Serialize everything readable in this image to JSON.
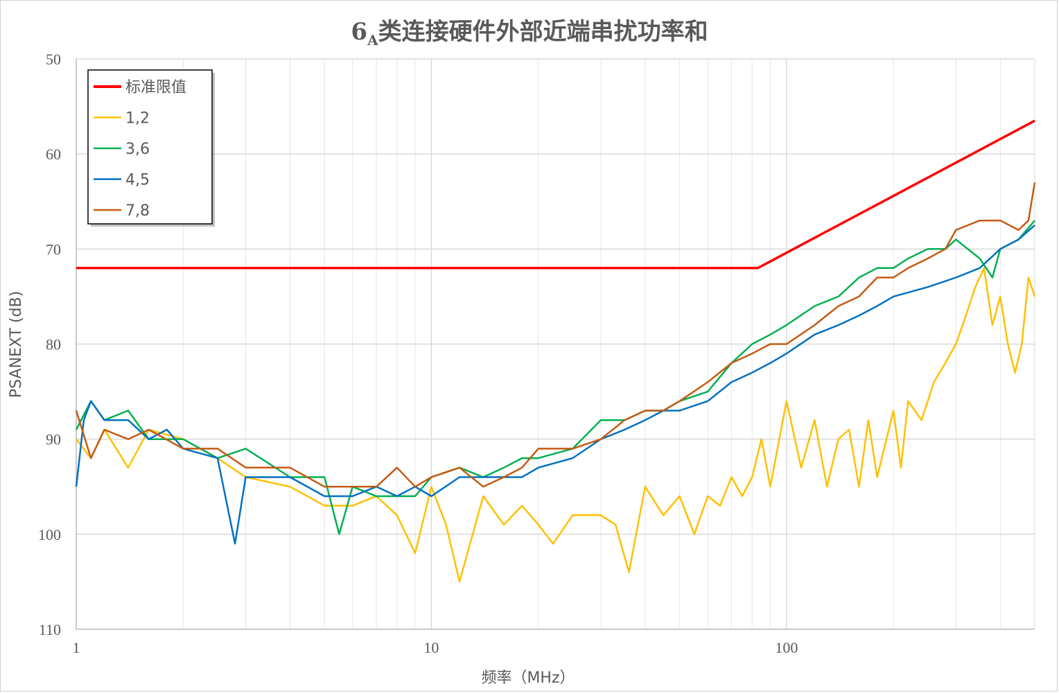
{
  "chart_data": {
    "type": "line",
    "title": "6",
    "title_subscript": "A",
    "title_rest": "类连接硬件外部近端串扰功率和",
    "xlabel": "频率（MHz）",
    "ylabel": "PSANEXT (dB)",
    "x_scale": "log",
    "xlim": [
      1,
      500
    ],
    "ylim": [
      50,
      110
    ],
    "y_inverted": true,
    "x_ticks": [
      "1",
      "10",
      "100"
    ],
    "y_ticks": [
      "50",
      "60",
      "70",
      "80",
      "90",
      "100",
      "110"
    ],
    "grid": true,
    "legend_position": "top-left",
    "limit_line": {
      "name": "标准限值",
      "color": "#ff0000",
      "points": [
        [
          1,
          72
        ],
        [
          83,
          72
        ],
        [
          500,
          56.5
        ]
      ]
    },
    "series": [
      {
        "name": "1,2",
        "color": "#ffc000",
        "points": [
          [
            1,
            90
          ],
          [
            1.1,
            92
          ],
          [
            1.2,
            89
          ],
          [
            1.4,
            93
          ],
          [
            1.6,
            89
          ],
          [
            2,
            90
          ],
          [
            2.5,
            92
          ],
          [
            3,
            94
          ],
          [
            4,
            95
          ],
          [
            5,
            97
          ],
          [
            6,
            97
          ],
          [
            7,
            96
          ],
          [
            8,
            98
          ],
          [
            9,
            102
          ],
          [
            10,
            95
          ],
          [
            11,
            99
          ],
          [
            12,
            105
          ],
          [
            14,
            96
          ],
          [
            16,
            99
          ],
          [
            18,
            97
          ],
          [
            20,
            99
          ],
          [
            22,
            101
          ],
          [
            25,
            98
          ],
          [
            30,
            98
          ],
          [
            33,
            99
          ],
          [
            36,
            104
          ],
          [
            40,
            95
          ],
          [
            45,
            98
          ],
          [
            50,
            96
          ],
          [
            55,
            100
          ],
          [
            60,
            96
          ],
          [
            65,
            97
          ],
          [
            70,
            94
          ],
          [
            75,
            96
          ],
          [
            80,
            94
          ],
          [
            85,
            90
          ],
          [
            90,
            95
          ],
          [
            100,
            86
          ],
          [
            110,
            93
          ],
          [
            120,
            88
          ],
          [
            130,
            95
          ],
          [
            140,
            90
          ],
          [
            150,
            89
          ],
          [
            160,
            95
          ],
          [
            170,
            88
          ],
          [
            180,
            94
          ],
          [
            200,
            87
          ],
          [
            210,
            93
          ],
          [
            220,
            86
          ],
          [
            240,
            88
          ],
          [
            260,
            84
          ],
          [
            280,
            82
          ],
          [
            300,
            80
          ],
          [
            320,
            77
          ],
          [
            340,
            74
          ],
          [
            360,
            72
          ],
          [
            380,
            78
          ],
          [
            400,
            75
          ],
          [
            420,
            80
          ],
          [
            440,
            83
          ],
          [
            460,
            80
          ],
          [
            480,
            73
          ],
          [
            500,
            75
          ]
        ]
      },
      {
        "name": "3,6",
        "color": "#00b050",
        "points": [
          [
            1,
            89
          ],
          [
            1.1,
            86
          ],
          [
            1.2,
            88
          ],
          [
            1.4,
            87
          ],
          [
            1.6,
            90
          ],
          [
            2,
            90
          ],
          [
            2.5,
            92
          ],
          [
            3,
            91
          ],
          [
            4,
            94
          ],
          [
            5,
            94
          ],
          [
            5.5,
            100
          ],
          [
            6,
            95
          ],
          [
            7,
            96
          ],
          [
            8,
            96
          ],
          [
            9,
            96
          ],
          [
            10,
            94
          ],
          [
            12,
            93
          ],
          [
            14,
            94
          ],
          [
            16,
            93
          ],
          [
            18,
            92
          ],
          [
            20,
            92
          ],
          [
            25,
            91
          ],
          [
            30,
            88
          ],
          [
            35,
            88
          ],
          [
            40,
            87
          ],
          [
            45,
            87
          ],
          [
            50,
            86
          ],
          [
            60,
            85
          ],
          [
            70,
            82
          ],
          [
            80,
            80
          ],
          [
            90,
            79
          ],
          [
            100,
            78
          ],
          [
            120,
            76
          ],
          [
            140,
            75
          ],
          [
            160,
            73
          ],
          [
            180,
            72
          ],
          [
            200,
            72
          ],
          [
            220,
            71
          ],
          [
            250,
            70
          ],
          [
            280,
            70
          ],
          [
            300,
            69
          ],
          [
            350,
            71
          ],
          [
            380,
            73
          ],
          [
            400,
            70
          ],
          [
            450,
            69
          ],
          [
            500,
            67
          ]
        ]
      },
      {
        "name": "4,5",
        "color": "#0070c0",
        "points": [
          [
            1,
            95
          ],
          [
            1.05,
            88
          ],
          [
            1.1,
            86
          ],
          [
            1.2,
            88
          ],
          [
            1.4,
            88
          ],
          [
            1.6,
            90
          ],
          [
            1.8,
            89
          ],
          [
            2,
            91
          ],
          [
            2.5,
            92
          ],
          [
            2.8,
            101
          ],
          [
            3,
            94
          ],
          [
            4,
            94
          ],
          [
            5,
            96
          ],
          [
            6,
            96
          ],
          [
            7,
            95
          ],
          [
            8,
            96
          ],
          [
            9,
            95
          ],
          [
            10,
            96
          ],
          [
            12,
            94
          ],
          [
            14,
            94
          ],
          [
            16,
            94
          ],
          [
            18,
            94
          ],
          [
            20,
            93
          ],
          [
            25,
            92
          ],
          [
            30,
            90
          ],
          [
            35,
            89
          ],
          [
            40,
            88
          ],
          [
            45,
            87
          ],
          [
            50,
            87
          ],
          [
            60,
            86
          ],
          [
            70,
            84
          ],
          [
            80,
            83
          ],
          [
            90,
            82
          ],
          [
            100,
            81
          ],
          [
            120,
            79
          ],
          [
            140,
            78
          ],
          [
            160,
            77
          ],
          [
            180,
            76
          ],
          [
            200,
            75
          ],
          [
            250,
            74
          ],
          [
            300,
            73
          ],
          [
            350,
            72
          ],
          [
            400,
            70
          ],
          [
            450,
            69
          ],
          [
            500,
            67.5
          ]
        ]
      },
      {
        "name": "7,8",
        "color": "#c55a11",
        "points": [
          [
            1,
            87
          ],
          [
            1.1,
            92
          ],
          [
            1.2,
            89
          ],
          [
            1.4,
            90
          ],
          [
            1.6,
            89
          ],
          [
            2,
            91
          ],
          [
            2.5,
            91
          ],
          [
            3,
            93
          ],
          [
            4,
            93
          ],
          [
            5,
            95
          ],
          [
            6,
            95
          ],
          [
            7,
            95
          ],
          [
            8,
            93
          ],
          [
            9,
            95
          ],
          [
            10,
            94
          ],
          [
            12,
            93
          ],
          [
            14,
            95
          ],
          [
            16,
            94
          ],
          [
            18,
            93
          ],
          [
            20,
            91
          ],
          [
            25,
            91
          ],
          [
            30,
            90
          ],
          [
            35,
            88
          ],
          [
            40,
            87
          ],
          [
            45,
            87
          ],
          [
            50,
            86
          ],
          [
            60,
            84
          ],
          [
            70,
            82
          ],
          [
            80,
            81
          ],
          [
            90,
            80
          ],
          [
            100,
            80
          ],
          [
            120,
            78
          ],
          [
            140,
            76
          ],
          [
            160,
            75
          ],
          [
            180,
            73
          ],
          [
            200,
            73
          ],
          [
            220,
            72
          ],
          [
            250,
            71
          ],
          [
            280,
            70
          ],
          [
            300,
            68
          ],
          [
            350,
            67
          ],
          [
            400,
            67
          ],
          [
            450,
            68
          ],
          [
            480,
            67
          ],
          [
            500,
            63
          ]
        ]
      }
    ]
  }
}
